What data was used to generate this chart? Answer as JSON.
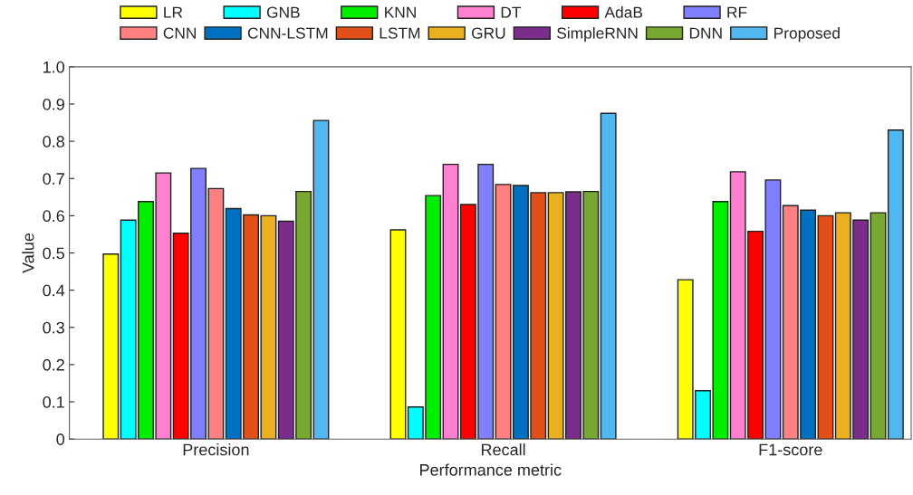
{
  "chart_data": {
    "type": "bar",
    "xlabel": "Performance metric",
    "ylabel": "Value",
    "categories": [
      "Precision",
      "Recall",
      "F1-score"
    ],
    "series": [
      {
        "name": "LR",
        "color": "#ffff00",
        "values": [
          0.497,
          0.562,
          0.428
        ]
      },
      {
        "name": "GNB",
        "color": "#00ffff",
        "values": [
          0.588,
          0.086,
          0.13
        ]
      },
      {
        "name": "KNN",
        "color": "#00ee00",
        "values": [
          0.638,
          0.654,
          0.638
        ]
      },
      {
        "name": "DT",
        "color": "#ff80d0",
        "values": [
          0.715,
          0.738,
          0.718
        ]
      },
      {
        "name": "AdaB",
        "color": "#ff0000",
        "values": [
          0.553,
          0.63,
          0.558
        ]
      },
      {
        "name": "RF",
        "color": "#8080ff",
        "values": [
          0.727,
          0.738,
          0.696
        ]
      },
      {
        "name": "CNN",
        "color": "#ff8080",
        "values": [
          0.673,
          0.684,
          0.627
        ]
      },
      {
        "name": "CNN-LSTM",
        "color": "#0070c0",
        "values": [
          0.619,
          0.681,
          0.615
        ]
      },
      {
        "name": "LSTM",
        "color": "#e05018",
        "values": [
          0.602,
          0.662,
          0.6
        ]
      },
      {
        "name": "GRU",
        "color": "#eab020",
        "values": [
          0.6,
          0.662,
          0.608
        ]
      },
      {
        "name": "SimpleRNN",
        "color": "#7b2d8b",
        "values": [
          0.585,
          0.664,
          0.588
        ]
      },
      {
        "name": "DNN",
        "color": "#76a832",
        "values": [
          0.665,
          0.665,
          0.608
        ]
      },
      {
        "name": "Proposed",
        "color": "#50b8ee",
        "values": [
          0.856,
          0.875,
          0.83
        ]
      }
    ],
    "ylim": [
      0,
      1.0
    ],
    "yticks": [
      0,
      0.1,
      0.2,
      0.3,
      0.4,
      0.5,
      0.6,
      0.7,
      0.8,
      0.9,
      {
        "value": 1,
        "label": "1.0"
      }
    ],
    "grid": false,
    "legend": "top"
  }
}
